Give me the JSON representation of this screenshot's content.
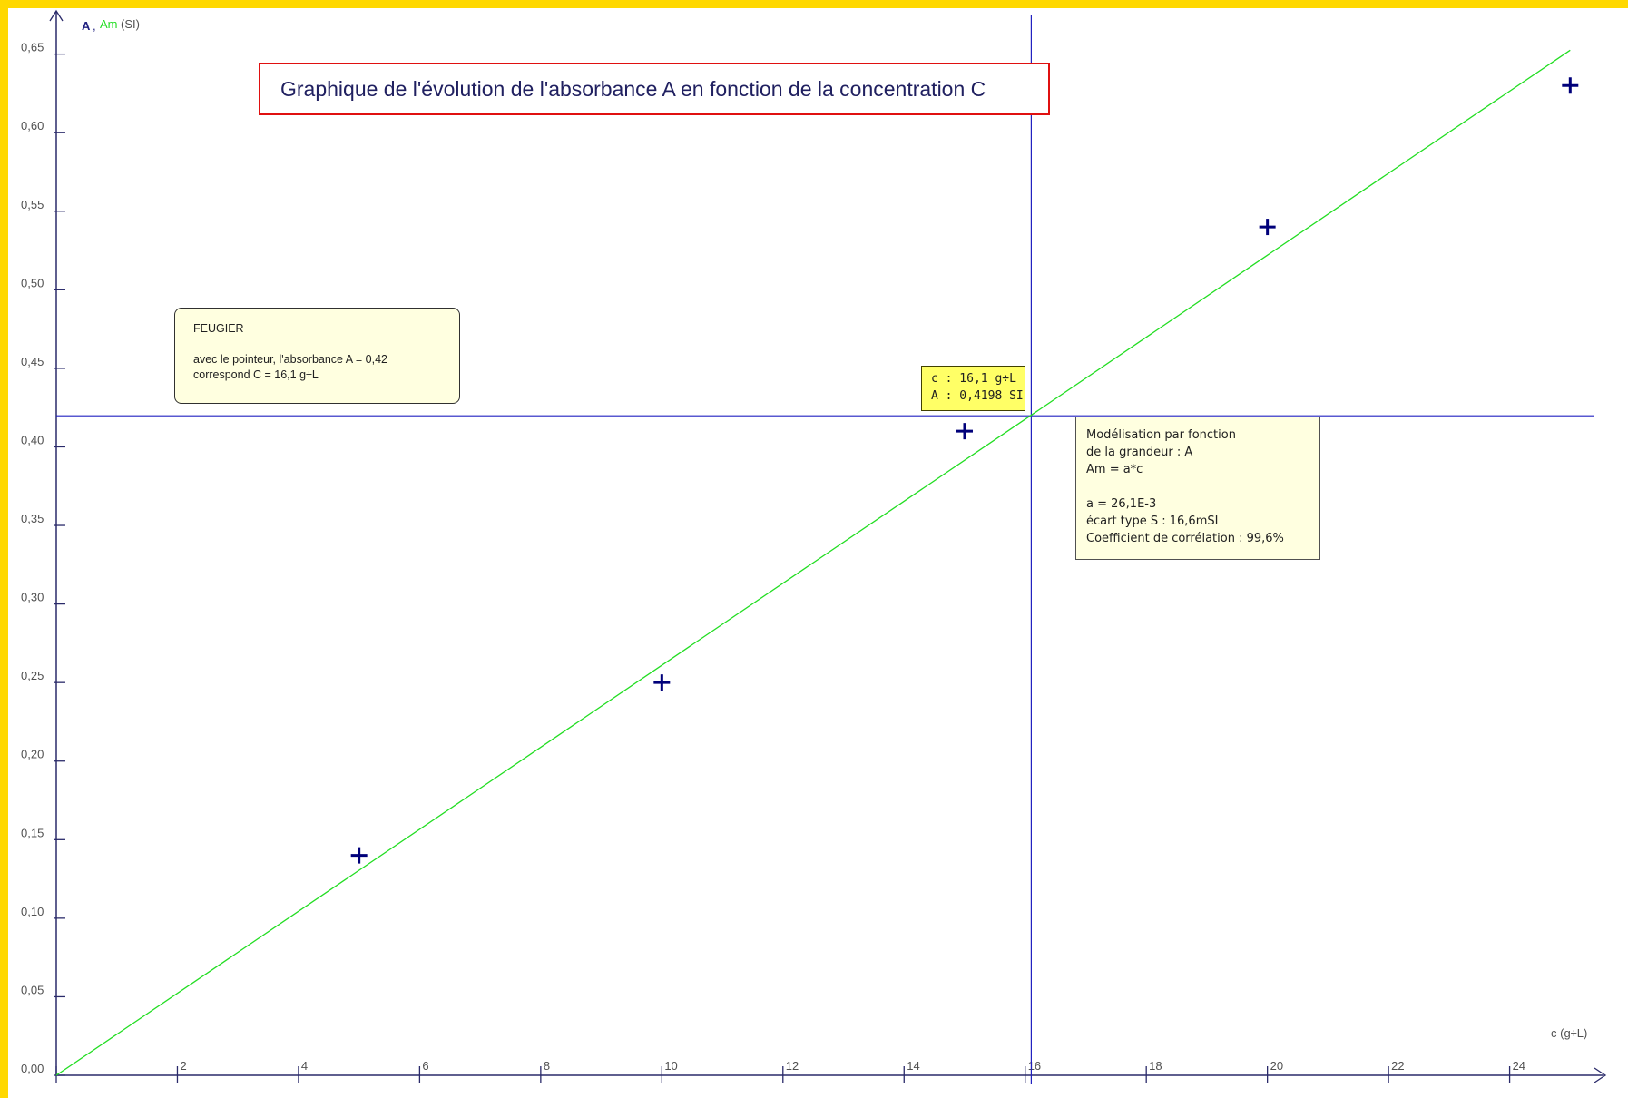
{
  "chart_data": {
    "type": "scatter",
    "title": "Graphique de l'évolution de l'absorbance A en fonction de la concentration C",
    "xlabel": "c (g÷L)",
    "ylabel_series": [
      "A",
      "Am"
    ],
    "ylabel_unit": "(SI)",
    "xlim": [
      0,
      25.4
    ],
    "ylim": [
      0,
      0.67
    ],
    "x_ticks": [
      0,
      2,
      4,
      6,
      8,
      10,
      12,
      14,
      16,
      18,
      20,
      22,
      24
    ],
    "x_tick_labels": [
      "",
      "2",
      "4",
      "6",
      "8",
      "10",
      "12",
      "14",
      "16",
      "18",
      "20",
      "22",
      "24"
    ],
    "y_ticks": [
      0,
      0.05,
      0.1,
      0.15,
      0.2,
      0.25,
      0.3,
      0.35,
      0.4,
      0.45,
      0.5,
      0.55,
      0.6,
      0.65
    ],
    "y_tick_labels": [
      "0,00",
      "0,05",
      "0,10",
      "0,15",
      "0,20",
      "0,25",
      "0,30",
      "0,35",
      "0,40",
      "0,45",
      "0,50",
      "0,55",
      "0,60",
      "0,65"
    ],
    "series": [
      {
        "name": "A",
        "kind": "points",
        "color": "#00007a",
        "marker": "plus",
        "x": [
          5,
          10,
          15,
          20,
          25
        ],
        "y": [
          0.14,
          0.25,
          0.41,
          0.54,
          0.63
        ]
      },
      {
        "name": "Am",
        "kind": "line",
        "color": "#22dd22",
        "x": [
          0,
          25
        ],
        "y": [
          0,
          0.6525
        ]
      }
    ],
    "cursor": {
      "x": 16.1,
      "y": 0.4198,
      "color": "#2020c0"
    },
    "grid": false
  },
  "annotations": {
    "note": {
      "name_line": "FEUGIER",
      "line1": "avec le pointeur, l'absorbance A = 0,42",
      "line2": "correspond C = 16,1 g÷L"
    },
    "cursor_readout": {
      "c_line": "c : 16,1 g÷L",
      "a_line": "A : 0,4198 SI"
    },
    "model": {
      "line1": "Modélisation par fonction",
      "line2": "de la grandeur : A",
      "line3": "Am = a*c",
      "line4": "a = 26,1E-3",
      "line5": "écart type S : 16,6mSI",
      "line6": "Coefficient de corrélation : 99,6%"
    }
  },
  "colors": {
    "frame": "#ffd800",
    "axis": "#2a2a6a",
    "title_border": "#e01010",
    "note_bg": "#ffffe0",
    "cursor_box_bg": "#ffff66"
  }
}
